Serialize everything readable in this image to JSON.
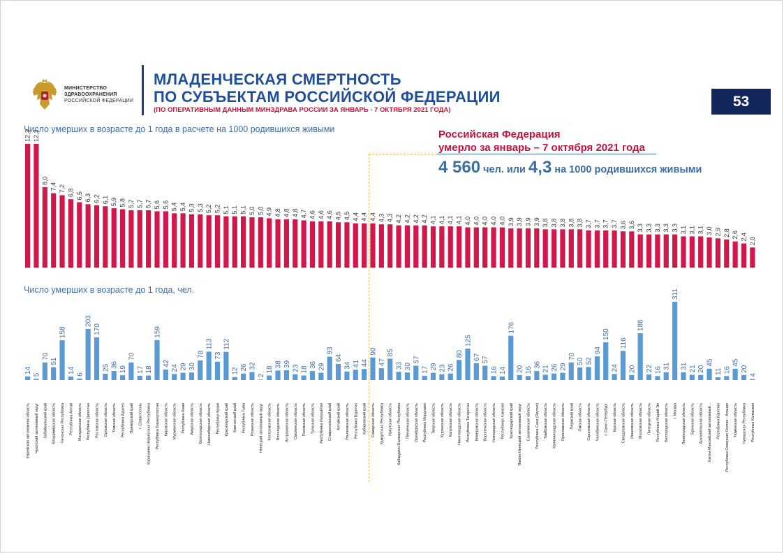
{
  "header": {
    "ministry_line1": "МИНИСТЕРСТВО",
    "ministry_line2": "ЗДРАВООХРАНЕНИЯ",
    "ministry_line3": "РОССИЙСКОЙ ФЕДЕРАЦИИ",
    "title_line1": "МЛАДЕНЧЕСКАЯ СМЕРТНОСТЬ",
    "title_line2": "ПО СУБЪЕКТАМ РОССИЙСКОЙ ФЕДЕРАЦИИ",
    "subtitle": "(ПО ОПЕРАТИВНЫМ ДАННЫМ МИНЗДРАВА РОССИИ ЗА ЯНВАРЬ  - 7 ОКТЯБРЯ 2021 ГОДА)",
    "page_number": "53"
  },
  "summary": {
    "title_line1": "Российская Федерация",
    "title_line2": "умерло за январь – 7 октября 2021 года",
    "count": "4 560",
    "count_unit": " чел. или ",
    "rate": "4,3",
    "rate_unit": " на 1000 родившихся живыми"
  },
  "colors": {
    "rate_bar": "#d1184a",
    "count_bar": "#5b9bd5",
    "title": "#1f4e9c",
    "accent_red": "#c0143c",
    "label_blue": "#3d6ea5",
    "pagenum_bg": "#14275d"
  },
  "chart_data": [
    {
      "type": "bar",
      "title": "Число умерших в возрасте до 1 года в расчете на 1000 родившихся живыми",
      "categories": [
        "Еврейская автономная область",
        "Чукотский автономный округ",
        "Забайкальский край",
        "Владимирская область",
        "Чеченская Республика",
        "Республика Алтай",
        "Магаданская область",
        "Республика Дагестан",
        "Ростовская область",
        "Орловская область",
        "Томская область",
        "Республика Адыгея",
        "Приморский край",
        "г. Севастополь",
        "Карачаево-Черкесская Республика",
        "Республика Башкортостан",
        "Кировская область",
        "Мурманская область",
        "Республика Коми",
        "Амурская область",
        "Волгоградская область",
        "Новосибирская область",
        "Республика Крым",
        "Красноярский край",
        "Камчатский край",
        "Республика Тыва",
        "Рязанская область",
        "Ненецкий автономный округ",
        "Костромская область",
        "Вологодская область",
        "Астраханская область",
        "Смоленская область",
        "Псковская область",
        "Тульская область",
        "Республика Ингушетия",
        "Ставропольский край",
        "Алтайский край",
        "Ульяновская область",
        "Республика Бурятия",
        "Хабаровский край",
        "Самарская область",
        "Удмуртская Республика",
        "Иркутская область",
        "Кабардино-Балкарская Республика",
        "Пензенская область",
        "Оренбургская область",
        "Республика Мордовия",
        "Тверская область",
        "Курганская область",
        "Калужская область",
        "Нижегородская область",
        "Республика Татарстан",
        "Кемеровская область",
        "Воронежская область",
        "Новгородская область",
        "Республика Хакасия",
        "Краснодарский край",
        "Ямало-Ненецкий автономный округ",
        "Сахалинская область",
        "Республика Саха (Якутия)",
        "Тамбовская область",
        "Калининградская область",
        "Ярославская область",
        "Пермский край",
        "Омская область",
        "Саратовская область",
        "Челябинская область",
        "г. Санкт-Петербург",
        "Курская область",
        "Свердловская область",
        "Ивановская область",
        "Московская область",
        "Липецкая область",
        "Республика Марий Эл",
        "Белгородская область",
        "г. Москва",
        "Ленинградская область",
        "Брянская область",
        "Архангельская область",
        "Ханты-Мансийский автономный...",
        "Республика Карелия",
        "Республика Северная Осетия - Алания",
        "Тюменская область",
        "Чувашская Республика",
        "Республика Калмыкия"
      ],
      "values": [
        12.3,
        12.3,
        8.0,
        7.4,
        7.2,
        6.8,
        6.5,
        6.3,
        6.2,
        6.1,
        5.9,
        5.8,
        5.7,
        5.7,
        5.7,
        5.6,
        5.6,
        5.4,
        5.4,
        5.3,
        5.3,
        5.2,
        5.2,
        5.1,
        5.1,
        5.1,
        5.0,
        5.0,
        4.9,
        4.8,
        4.8,
        4.8,
        4.7,
        4.6,
        4.6,
        4.6,
        4.5,
        4.5,
        4.4,
        4.4,
        4.4,
        4.3,
        4.3,
        4.2,
        4.2,
        4.2,
        4.2,
        4.1,
        4.1,
        4.1,
        4.1,
        4.0,
        4.0,
        4.0,
        4.0,
        4.0,
        3.9,
        3.9,
        3.9,
        3.9,
        3.8,
        3.8,
        3.8,
        3.8,
        3.8,
        3.7,
        3.7,
        3.7,
        3.7,
        3.6,
        3.6,
        3.3,
        3.3,
        3.3,
        3.3,
        3.3,
        3.1,
        3.1,
        3.1,
        3.0,
        2.9,
        2.8,
        2.6,
        2.4,
        2.0
      ],
      "value_labels": [
        "12,3",
        "12,3",
        "8,0",
        "7,4",
        "7,2",
        "6,8",
        "6,5",
        "6,3",
        "6,2",
        "6,1",
        "5,9",
        "5,8",
        "5,7",
        "5,7",
        "5,7",
        "5,6",
        "5,6",
        "5,4",
        "5,4",
        "5,3",
        "5,3",
        "5,2",
        "5,2",
        "5,1",
        "5,1",
        "5,1",
        "5,0",
        "5,0",
        "4,9",
        "4,8",
        "4,8",
        "4,8",
        "4,7",
        "4,6",
        "4,6",
        "4,6",
        "4,5",
        "4,5",
        "4,4",
        "4,4",
        "4,4",
        "4,3",
        "4,3",
        "4,2",
        "4,2",
        "4,2",
        "4,2",
        "4,1",
        "4,1",
        "4,1",
        "4,1",
        "4,0",
        "4,0",
        "4,0",
        "4,0",
        "4,0",
        "3,9",
        "3,9",
        "3,9",
        "3,9",
        "3,8",
        "3,8",
        "3,8",
        "3,8",
        "3,8",
        "3,7",
        "3,7",
        "3,7",
        "3,7",
        "3,6",
        "3,6",
        "3,3",
        "3,3",
        "3,3",
        "3,3",
        "3,3",
        "3,1",
        "3,1",
        "3,1",
        "3,0",
        "2,9",
        "2,8",
        "2,6",
        "2,4",
        "2,0"
      ],
      "ylim": [
        0,
        12.3
      ]
    },
    {
      "type": "bar",
      "title": "Число умерших в возрасте до 1 года, чел.",
      "values": [
        14,
        5,
        70,
        51,
        158,
        14,
        6,
        203,
        170,
        25,
        36,
        19,
        70,
        17,
        18,
        159,
        42,
        24,
        29,
        30,
        78,
        113,
        73,
        112,
        12,
        26,
        32,
        2,
        18,
        38,
        39,
        23,
        18,
        36,
        29,
        93,
        64,
        34,
        41,
        44,
        90,
        47,
        85,
        33,
        30,
        57,
        17,
        29,
        23,
        26,
        80,
        125,
        67,
        57,
        16,
        14,
        176,
        20,
        16,
        36,
        21,
        26,
        29,
        70,
        50,
        52,
        94,
        150,
        24,
        116,
        20,
        186,
        22,
        16,
        31,
        311,
        31,
        21,
        20,
        45,
        11,
        16,
        45,
        20,
        4
      ],
      "ylim": [
        0,
        311
      ]
    }
  ]
}
